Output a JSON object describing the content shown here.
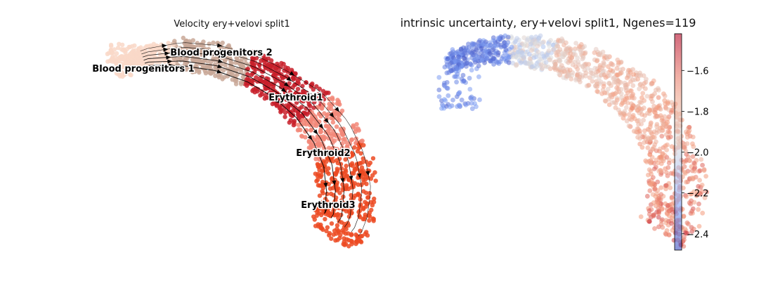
{
  "figure": {
    "left_title": "Velocity ery+velovi split1",
    "right_title": "intrinsic uncertainty, ery+velovi split1, Ngenes=119"
  },
  "chart_data": [
    {
      "type": "scatter",
      "subtype": "embedding with velocity streamlines",
      "title": "Velocity ery+velovi split1",
      "axes_visible": false,
      "clusters": [
        {
          "label": "Blood progenitors 1",
          "color": "#f9d8c8"
        },
        {
          "label": "Blood progenitors 2",
          "color": "#c9a898"
        },
        {
          "label": "Erythroid1",
          "color": "#c8202a"
        },
        {
          "label": "Erythroid2",
          "color": "#f28778"
        },
        {
          "label": "Erythroid3",
          "color": "#ec4a22"
        }
      ],
      "streamline_color": "#000000"
    },
    {
      "type": "scatter",
      "subtype": "embedding colored by continuous value",
      "title": "intrinsic uncertainty, ery+velovi split1, Ngenes=119",
      "axes_visible": false,
      "colormap": "coolwarm",
      "colorbar": {
        "ticks": [
          -1.6,
          -1.8,
          -2.0,
          -2.2,
          -2.4
        ],
        "tick_labels": [
          "−1.6",
          "−1.8",
          "−2.0",
          "−2.2",
          "−2.4"
        ],
        "range": [
          -2.48,
          -1.42
        ]
      }
    }
  ]
}
